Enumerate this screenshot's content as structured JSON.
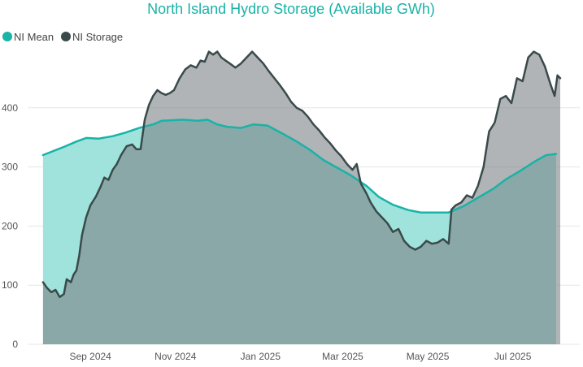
{
  "chart_data": {
    "type": "area",
    "title": "North Island Hydro Storage (Available GWh)",
    "xlabel": "",
    "ylabel": "",
    "grid": true,
    "legend_position": "top-left",
    "ylim": [
      0,
      500
    ],
    "y_ticks": [
      0,
      100,
      200,
      300,
      400
    ],
    "x_range": [
      "2024-08-01",
      "2025-09-01"
    ],
    "x_ticks": [
      {
        "label": "Sep 2024",
        "date": "2024-09-15"
      },
      {
        "label": "Nov 2024",
        "date": "2024-11-15"
      },
      {
        "label": "Jan 2025",
        "date": "2025-01-15"
      },
      {
        "label": "Mar 2025",
        "date": "2025-03-15"
      },
      {
        "label": "May 2025",
        "date": "2025-05-15"
      },
      {
        "label": "Jul 2025",
        "date": "2025-07-15"
      }
    ],
    "series": [
      {
        "name": "NI Mean",
        "color": "#19b3a7",
        "fill": "#9fe3dc",
        "points": [
          [
            "2024-08-12",
            320
          ],
          [
            "2024-08-26",
            333
          ],
          [
            "2024-09-05",
            343
          ],
          [
            "2024-09-12",
            349
          ],
          [
            "2024-09-21",
            348
          ],
          [
            "2024-10-01",
            352
          ],
          [
            "2024-10-10",
            358
          ],
          [
            "2024-10-20",
            366
          ],
          [
            "2024-10-30",
            372
          ],
          [
            "2024-11-05",
            378
          ],
          [
            "2024-11-20",
            380
          ],
          [
            "2024-12-01",
            378
          ],
          [
            "2024-12-08",
            380
          ],
          [
            "2024-12-15",
            372
          ],
          [
            "2024-12-22",
            368
          ],
          [
            "2025-01-01",
            366
          ],
          [
            "2025-01-10",
            372
          ],
          [
            "2025-01-20",
            370
          ],
          [
            "2025-02-01",
            355
          ],
          [
            "2025-02-10",
            343
          ],
          [
            "2025-02-20",
            328
          ],
          [
            "2025-03-01",
            312
          ],
          [
            "2025-03-10",
            300
          ],
          [
            "2025-03-20",
            287
          ],
          [
            "2025-04-01",
            268
          ],
          [
            "2025-04-10",
            249
          ],
          [
            "2025-04-20",
            236
          ],
          [
            "2025-05-01",
            227
          ],
          [
            "2025-05-10",
            223
          ],
          [
            "2025-05-20",
            223
          ],
          [
            "2025-05-30",
            223
          ],
          [
            "2025-06-10",
            234
          ],
          [
            "2025-06-20",
            248
          ],
          [
            "2025-07-01",
            263
          ],
          [
            "2025-07-10",
            279
          ],
          [
            "2025-07-20",
            293
          ],
          [
            "2025-08-01",
            311
          ],
          [
            "2025-08-08",
            320
          ],
          [
            "2025-08-15",
            322
          ]
        ]
      },
      {
        "name": "NI Storage",
        "color": "#3a4a4a",
        "fill": "rgba(120,125,130,0.58)",
        "points": [
          [
            "2024-08-12",
            105
          ],
          [
            "2024-08-15",
            95
          ],
          [
            "2024-08-18",
            88
          ],
          [
            "2024-08-21",
            92
          ],
          [
            "2024-08-24",
            80
          ],
          [
            "2024-08-27",
            85
          ],
          [
            "2024-08-29",
            110
          ],
          [
            "2024-09-01",
            105
          ],
          [
            "2024-09-03",
            118
          ],
          [
            "2024-09-05",
            125
          ],
          [
            "2024-09-07",
            150
          ],
          [
            "2024-09-09",
            185
          ],
          [
            "2024-09-12",
            215
          ],
          [
            "2024-09-15",
            235
          ],
          [
            "2024-09-19",
            250
          ],
          [
            "2024-09-22",
            265
          ],
          [
            "2024-09-25",
            282
          ],
          [
            "2024-09-28",
            278
          ],
          [
            "2024-10-01",
            295
          ],
          [
            "2024-10-04",
            305
          ],
          [
            "2024-10-07",
            320
          ],
          [
            "2024-10-11",
            335
          ],
          [
            "2024-10-15",
            338
          ],
          [
            "2024-10-18",
            330
          ],
          [
            "2024-10-21",
            330
          ],
          [
            "2024-10-24",
            380
          ],
          [
            "2024-10-27",
            405
          ],
          [
            "2024-10-30",
            420
          ],
          [
            "2024-11-02",
            430
          ],
          [
            "2024-11-05",
            425
          ],
          [
            "2024-11-08",
            422
          ],
          [
            "2024-11-11",
            425
          ],
          [
            "2024-11-14",
            430
          ],
          [
            "2024-11-18",
            450
          ],
          [
            "2024-11-22",
            465
          ],
          [
            "2024-11-26",
            472
          ],
          [
            "2024-11-30",
            468
          ],
          [
            "2024-12-03",
            480
          ],
          [
            "2024-12-06",
            478
          ],
          [
            "2024-12-09",
            495
          ],
          [
            "2024-12-12",
            490
          ],
          [
            "2024-12-15",
            495
          ],
          [
            "2024-12-18",
            485
          ],
          [
            "2024-12-21",
            480
          ],
          [
            "2024-12-24",
            475
          ],
          [
            "2024-12-28",
            468
          ],
          [
            "2025-01-01",
            475
          ],
          [
            "2025-01-05",
            485
          ],
          [
            "2025-01-09",
            495
          ],
          [
            "2025-01-13",
            485
          ],
          [
            "2025-01-17",
            475
          ],
          [
            "2025-01-21",
            462
          ],
          [
            "2025-01-25",
            450
          ],
          [
            "2025-01-29",
            438
          ],
          [
            "2025-02-02",
            425
          ],
          [
            "2025-02-06",
            410
          ],
          [
            "2025-02-10",
            400
          ],
          [
            "2025-02-14",
            395
          ],
          [
            "2025-02-18",
            385
          ],
          [
            "2025-02-22",
            372
          ],
          [
            "2025-02-26",
            362
          ],
          [
            "2025-03-02",
            350
          ],
          [
            "2025-03-06",
            340
          ],
          [
            "2025-03-10",
            328
          ],
          [
            "2025-03-14",
            318
          ],
          [
            "2025-03-18",
            305
          ],
          [
            "2025-03-22",
            295
          ],
          [
            "2025-03-25",
            305
          ],
          [
            "2025-03-28",
            272
          ],
          [
            "2025-04-01",
            255
          ],
          [
            "2025-04-04",
            240
          ],
          [
            "2025-04-08",
            225
          ],
          [
            "2025-04-12",
            215
          ],
          [
            "2025-04-16",
            205
          ],
          [
            "2025-04-20",
            190
          ],
          [
            "2025-04-24",
            195
          ],
          [
            "2025-04-28",
            175
          ],
          [
            "2025-05-02",
            165
          ],
          [
            "2025-05-06",
            160
          ],
          [
            "2025-05-10",
            165
          ],
          [
            "2025-05-14",
            175
          ],
          [
            "2025-05-18",
            170
          ],
          [
            "2025-05-22",
            172
          ],
          [
            "2025-05-26",
            178
          ],
          [
            "2025-05-30",
            170
          ],
          [
            "2025-06-01",
            228
          ],
          [
            "2025-06-04",
            235
          ],
          [
            "2025-06-08",
            240
          ],
          [
            "2025-06-12",
            252
          ],
          [
            "2025-06-16",
            248
          ],
          [
            "2025-06-20",
            268
          ],
          [
            "2025-06-24",
            300
          ],
          [
            "2025-06-28",
            360
          ],
          [
            "2025-07-02",
            375
          ],
          [
            "2025-07-06",
            415
          ],
          [
            "2025-07-10",
            420
          ],
          [
            "2025-07-14",
            408
          ],
          [
            "2025-07-18",
            450
          ],
          [
            "2025-07-22",
            445
          ],
          [
            "2025-07-26",
            485
          ],
          [
            "2025-07-30",
            495
          ],
          [
            "2025-08-03",
            490
          ],
          [
            "2025-08-07",
            470
          ],
          [
            "2025-08-11",
            440
          ],
          [
            "2025-08-14",
            420
          ],
          [
            "2025-08-16",
            455
          ],
          [
            "2025-08-18",
            450
          ]
        ]
      }
    ]
  }
}
